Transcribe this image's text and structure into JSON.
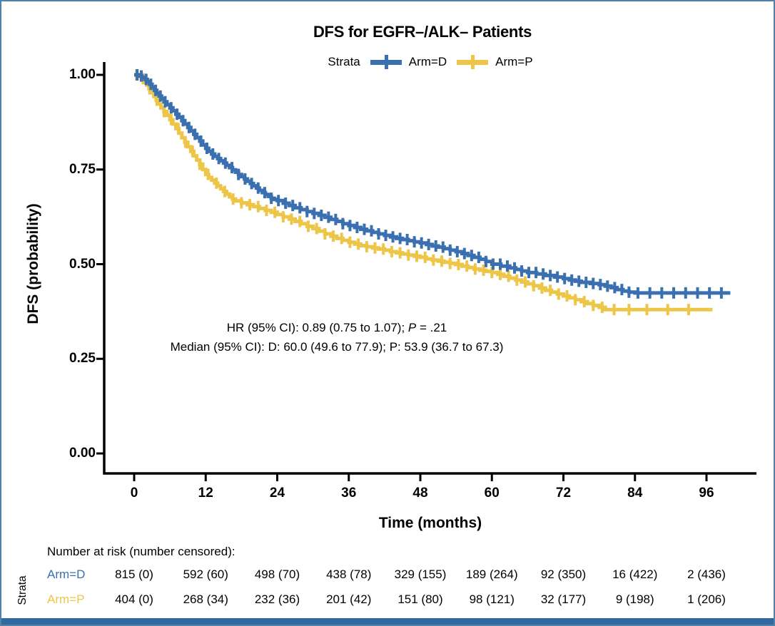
{
  "figure": {
    "border_color": "#4F81AD",
    "bottom_bar_color": "#30699E",
    "background": "#FFFFFF"
  },
  "legend": {
    "label": "Strata",
    "items": [
      {
        "name": "Arm=D",
        "color": "#3A6FB0"
      },
      {
        "name": "Arm=P",
        "color": "#EDC649"
      }
    ]
  },
  "annotation": {
    "line1_pre": "HR (95% CI): 0.89 (0.75 to 1.07); ",
    "line1_italic": "P",
    "line1_post": " = .21",
    "line2": "Median (95% CI): D: 60.0 (49.6 to 77.9); P: 53.9 (36.7 to 67.3)"
  },
  "chart_data": {
    "type": "line",
    "subtype": "kaplan-meier-step",
    "title": "DFS for EGFR–/ALK– Patients",
    "xlabel": "Time (months)",
    "ylabel": "DFS (probability)",
    "xlim": [
      0,
      104
    ],
    "ylim": [
      0,
      1.0
    ],
    "grid": false,
    "legend_position": "top",
    "x_tick_values": [
      0,
      12,
      24,
      36,
      48,
      60,
      72,
      84,
      96
    ],
    "x_tick_labels": [
      "0",
      "12",
      "24",
      "36",
      "48",
      "60",
      "72",
      "84",
      "96"
    ],
    "y_tick_values": [
      0,
      0.25,
      0.5,
      0.75,
      1.0
    ],
    "y_tick_labels": [
      "0.00",
      "0.25",
      "0.50",
      "0.75",
      "1.00"
    ],
    "stats": {
      "hr": 0.89,
      "hr_ci": [
        0.75,
        1.07
      ],
      "p_value": ".21",
      "median_D": 60.0,
      "median_D_ci": [
        49.6,
        77.9
      ],
      "median_P": 53.9,
      "median_P_ci": [
        36.7,
        67.3
      ]
    },
    "series": [
      {
        "name": "Arm=P",
        "color": "#EDC649",
        "end": 97,
        "steps": [
          [
            0,
            1.0
          ],
          [
            0.7,
            0.996
          ],
          [
            1.2,
            0.99
          ],
          [
            1.7,
            0.982
          ],
          [
            2.1,
            0.973
          ],
          [
            2.5,
            0.963
          ],
          [
            2.9,
            0.953
          ],
          [
            3.3,
            0.943
          ],
          [
            3.7,
            0.933
          ],
          [
            4.1,
            0.923
          ],
          [
            4.5,
            0.913
          ],
          [
            5.0,
            0.903
          ],
          [
            5.5,
            0.893
          ],
          [
            6.0,
            0.882
          ],
          [
            6.5,
            0.87
          ],
          [
            7.0,
            0.858
          ],
          [
            7.5,
            0.846
          ],
          [
            8.0,
            0.834
          ],
          [
            8.5,
            0.822
          ],
          [
            9.0,
            0.81
          ],
          [
            9.5,
            0.798
          ],
          [
            10.0,
            0.786
          ],
          [
            10.5,
            0.775
          ],
          [
            11.0,
            0.764
          ],
          [
            11.5,
            0.75
          ],
          [
            12.0,
            0.737
          ],
          [
            12.5,
            0.729
          ],
          [
            13.0,
            0.722
          ],
          [
            13.5,
            0.714
          ],
          [
            14.0,
            0.707
          ],
          [
            14.5,
            0.699
          ],
          [
            15.0,
            0.692
          ],
          [
            15.5,
            0.685
          ],
          [
            16.0,
            0.678
          ],
          [
            16.5,
            0.672
          ],
          [
            17.0,
            0.667
          ],
          [
            18.0,
            0.662
          ],
          [
            19.0,
            0.657
          ],
          [
            20.0,
            0.652
          ],
          [
            21.0,
            0.647
          ],
          [
            22.0,
            0.642
          ],
          [
            23.0,
            0.637
          ],
          [
            24.0,
            0.631
          ],
          [
            25.0,
            0.625
          ],
          [
            26.0,
            0.619
          ],
          [
            27.0,
            0.613
          ],
          [
            28.0,
            0.607
          ],
          [
            29.0,
            0.6
          ],
          [
            30.0,
            0.594
          ],
          [
            31.0,
            0.587
          ],
          [
            32.0,
            0.58
          ],
          [
            33.0,
            0.574
          ],
          [
            34.0,
            0.568
          ],
          [
            35.0,
            0.563
          ],
          [
            36.0,
            0.558
          ],
          [
            37.0,
            0.553
          ],
          [
            38.0,
            0.549
          ],
          [
            39.0,
            0.546
          ],
          [
            40.0,
            0.543
          ],
          [
            41.0,
            0.54
          ],
          [
            42.0,
            0.537
          ],
          [
            43.0,
            0.533
          ],
          [
            44.0,
            0.53
          ],
          [
            45.0,
            0.527
          ],
          [
            46.0,
            0.524
          ],
          [
            47.0,
            0.521
          ],
          [
            48.0,
            0.518
          ],
          [
            49.0,
            0.514
          ],
          [
            50.0,
            0.511
          ],
          [
            51.0,
            0.508
          ],
          [
            52.0,
            0.505
          ],
          [
            53.0,
            0.502
          ],
          [
            53.9,
            0.499
          ],
          [
            55.0,
            0.495
          ],
          [
            56.0,
            0.491
          ],
          [
            57.0,
            0.487
          ],
          [
            58.0,
            0.484
          ],
          [
            59.0,
            0.481
          ],
          [
            60.0,
            0.478
          ],
          [
            61.0,
            0.473
          ],
          [
            62.0,
            0.468
          ],
          [
            63.0,
            0.463
          ],
          [
            64.0,
            0.458
          ],
          [
            65.0,
            0.453
          ],
          [
            66.0,
            0.448
          ],
          [
            67.0,
            0.443
          ],
          [
            68.0,
            0.437
          ],
          [
            69.0,
            0.431
          ],
          [
            70.0,
            0.426
          ],
          [
            71.0,
            0.421
          ],
          [
            72.0,
            0.416
          ],
          [
            73.0,
            0.411
          ],
          [
            74.0,
            0.406
          ],
          [
            75.0,
            0.401
          ],
          [
            76.0,
            0.396
          ],
          [
            77.0,
            0.391
          ],
          [
            78.0,
            0.386
          ],
          [
            79.0,
            0.38
          ]
        ],
        "censors": [
          0.4,
          1.5,
          2.6,
          3.8,
          5.0,
          6.2,
          7.4,
          8.6,
          9.8,
          11.0,
          12.4,
          13.8,
          15.2,
          16.6,
          18.0,
          19.4,
          20.8,
          22.2,
          23.6,
          25.0,
          26.4,
          27.8,
          29.2,
          30.6,
          32.0,
          33.4,
          34.8,
          36.2,
          37.6,
          39.0,
          40.4,
          41.8,
          43.2,
          44.6,
          46.0,
          47.4,
          48.8,
          50.2,
          51.6,
          53.0,
          54.4,
          55.8,
          57.2,
          58.6,
          60.0,
          61.4,
          62.8,
          64.2,
          65.6,
          67.0,
          68.4,
          69.8,
          71.2,
          72.6,
          74.0,
          75.5,
          77.0,
          78.5,
          80.5,
          83.0,
          86.0,
          89.5,
          93.0
        ]
      },
      {
        "name": "Arm=D",
        "color": "#3A6FB0",
        "end": 100,
        "steps": [
          [
            0,
            1.0
          ],
          [
            0.8,
            0.997
          ],
          [
            1.3,
            0.993
          ],
          [
            1.8,
            0.988
          ],
          [
            2.2,
            0.982
          ],
          [
            2.6,
            0.975
          ],
          [
            3.0,
            0.967
          ],
          [
            3.4,
            0.959
          ],
          [
            3.8,
            0.951
          ],
          [
            4.2,
            0.944
          ],
          [
            4.6,
            0.937
          ],
          [
            5.0,
            0.929
          ],
          [
            5.5,
            0.921
          ],
          [
            6.0,
            0.913
          ],
          [
            6.5,
            0.905
          ],
          [
            7.0,
            0.896
          ],
          [
            7.5,
            0.888
          ],
          [
            8.0,
            0.879
          ],
          [
            8.5,
            0.87
          ],
          [
            9.0,
            0.861
          ],
          [
            9.5,
            0.852
          ],
          [
            10.0,
            0.843
          ],
          [
            10.5,
            0.834
          ],
          [
            11.0,
            0.825
          ],
          [
            11.5,
            0.815
          ],
          [
            12.0,
            0.806
          ],
          [
            12.5,
            0.798
          ],
          [
            13.0,
            0.791
          ],
          [
            13.5,
            0.785
          ],
          [
            14.0,
            0.779
          ],
          [
            14.5,
            0.773
          ],
          [
            15.0,
            0.767
          ],
          [
            15.5,
            0.761
          ],
          [
            16.0,
            0.755
          ],
          [
            16.5,
            0.749
          ],
          [
            17.0,
            0.743
          ],
          [
            17.5,
            0.737
          ],
          [
            18.0,
            0.731
          ],
          [
            18.5,
            0.725
          ],
          [
            19.0,
            0.719
          ],
          [
            19.5,
            0.713
          ],
          [
            20.0,
            0.707
          ],
          [
            20.5,
            0.701
          ],
          [
            21.0,
            0.695
          ],
          [
            21.5,
            0.689
          ],
          [
            22.0,
            0.684
          ],
          [
            22.5,
            0.679
          ],
          [
            23.0,
            0.674
          ],
          [
            23.5,
            0.671
          ],
          [
            24.0,
            0.668
          ],
          [
            25.0,
            0.661
          ],
          [
            26.0,
            0.655
          ],
          [
            27.0,
            0.649
          ],
          [
            28.0,
            0.644
          ],
          [
            29.0,
            0.639
          ],
          [
            30.0,
            0.634
          ],
          [
            31.0,
            0.629
          ],
          [
            32.0,
            0.624
          ],
          [
            33.0,
            0.618
          ],
          [
            34.0,
            0.613
          ],
          [
            35.0,
            0.607
          ],
          [
            36.0,
            0.602
          ],
          [
            37.0,
            0.597
          ],
          [
            38.0,
            0.592
          ],
          [
            39.0,
            0.588
          ],
          [
            40.0,
            0.584
          ],
          [
            41.0,
            0.58
          ],
          [
            42.0,
            0.576
          ],
          [
            43.0,
            0.572
          ],
          [
            44.0,
            0.568
          ],
          [
            45.0,
            0.565
          ],
          [
            46.0,
            0.562
          ],
          [
            47.0,
            0.559
          ],
          [
            48.0,
            0.556
          ],
          [
            49.0,
            0.552
          ],
          [
            50.0,
            0.548
          ],
          [
            51.0,
            0.545
          ],
          [
            52.0,
            0.541
          ],
          [
            53.0,
            0.537
          ],
          [
            54.0,
            0.533
          ],
          [
            55.0,
            0.528
          ],
          [
            56.0,
            0.523
          ],
          [
            57.0,
            0.518
          ],
          [
            58.0,
            0.513
          ],
          [
            59.0,
            0.507
          ],
          [
            60.0,
            0.5
          ],
          [
            61.5,
            0.495
          ],
          [
            63.0,
            0.49
          ],
          [
            64.0,
            0.486
          ],
          [
            65.0,
            0.482
          ],
          [
            66.0,
            0.478
          ],
          [
            67.5,
            0.474
          ],
          [
            69.0,
            0.47
          ],
          [
            70.5,
            0.466
          ],
          [
            72.0,
            0.462
          ],
          [
            73.0,
            0.458
          ],
          [
            74.0,
            0.455
          ],
          [
            75.0,
            0.452
          ],
          [
            76.5,
            0.449
          ],
          [
            78.0,
            0.446
          ],
          [
            79.0,
            0.442
          ],
          [
            80.0,
            0.438
          ],
          [
            81.0,
            0.433
          ],
          [
            82.0,
            0.429
          ],
          [
            83.0,
            0.426
          ],
          [
            84.0,
            0.424
          ]
        ],
        "censors": [
          0.5,
          1.2,
          2.0,
          2.8,
          3.6,
          4.4,
          5.2,
          6.2,
          7.2,
          8.2,
          9.2,
          10.2,
          11.2,
          12.2,
          13.2,
          14.2,
          15.3,
          16.4,
          17.5,
          18.6,
          19.7,
          20.8,
          21.9,
          23.0,
          24.2,
          25.4,
          26.6,
          27.8,
          29.0,
          30.2,
          31.4,
          32.6,
          33.8,
          35.0,
          36.2,
          37.4,
          38.6,
          39.8,
          41.0,
          42.2,
          43.4,
          44.6,
          45.8,
          47.0,
          48.2,
          49.4,
          50.6,
          51.8,
          53.0,
          54.2,
          55.4,
          56.6,
          57.8,
          59.0,
          60.2,
          61.4,
          62.6,
          63.8,
          65.0,
          66.2,
          67.4,
          68.6,
          69.8,
          71.0,
          72.2,
          73.4,
          74.6,
          75.8,
          77.0,
          78.2,
          79.4,
          80.6,
          81.8,
          83.0,
          84.5,
          86.5,
          88.5,
          90.5,
          92.5,
          94.5,
          96.5,
          98.5
        ]
      }
    ]
  },
  "risk_table": {
    "header": "Number at risk (number censored):",
    "axis_label": "Strata",
    "times": [
      0,
      12,
      24,
      36,
      48,
      60,
      72,
      84,
      96
    ],
    "rows": [
      {
        "name": "Arm=D",
        "color": "#3A6FB0",
        "counts": [
          "815 (0)",
          "592 (60)",
          "498 (70)",
          "438 (78)",
          "329 (155)",
          "189 (264)",
          "92 (350)",
          "16 (422)",
          "2 (436)"
        ]
      },
      {
        "name": "Arm=P",
        "color": "#EDC649",
        "counts": [
          "404 (0)",
          "268 (34)",
          "232 (36)",
          "201 (42)",
          "151 (80)",
          "98 (121)",
          "32 (177)",
          "9 (198)",
          "1 (206)"
        ]
      }
    ]
  }
}
